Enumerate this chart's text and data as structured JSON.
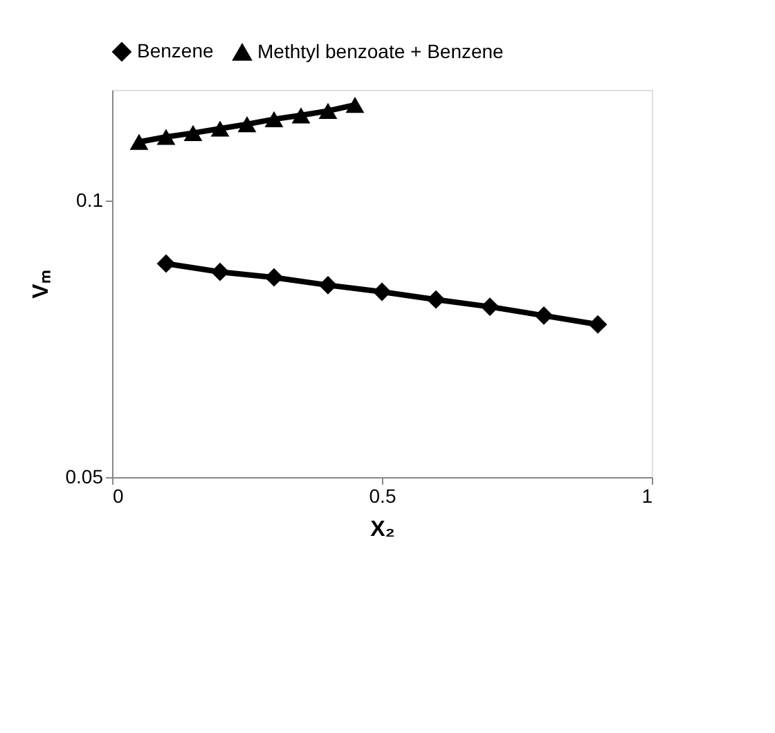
{
  "chart_data": {
    "type": "line",
    "xlabel": "X₂",
    "ylabel": "Vₘ",
    "xlim": [
      0,
      1
    ],
    "xticks": [
      0,
      0.5,
      1
    ],
    "ylim": [
      0.05,
      0.12
    ],
    "yticks": [
      0.05,
      0.1
    ],
    "legend": "top",
    "grid": false,
    "line_style": "solid",
    "series": [
      {
        "name": "Benzene",
        "color": "#000000",
        "marker": "diamond",
        "x": [
          0.1,
          0.2,
          0.3,
          0.4,
          0.5,
          0.6,
          0.7,
          0.8,
          0.9
        ],
        "values": [
          0.0886,
          0.0871,
          0.0861,
          0.0847,
          0.0835,
          0.0821,
          0.0808,
          0.0792,
          0.0776
        ]
      },
      {
        "name": "Methtyl benzoate + Benzene",
        "color": "#000000",
        "marker": "triangle",
        "x": [
          0.05,
          0.1,
          0.15,
          0.2,
          0.25,
          0.3,
          0.35,
          0.4,
          0.45
        ],
        "values": [
          0.1106,
          0.1115,
          0.1122,
          0.113,
          0.1138,
          0.1147,
          0.1154,
          0.1162,
          0.1173
        ]
      }
    ]
  }
}
